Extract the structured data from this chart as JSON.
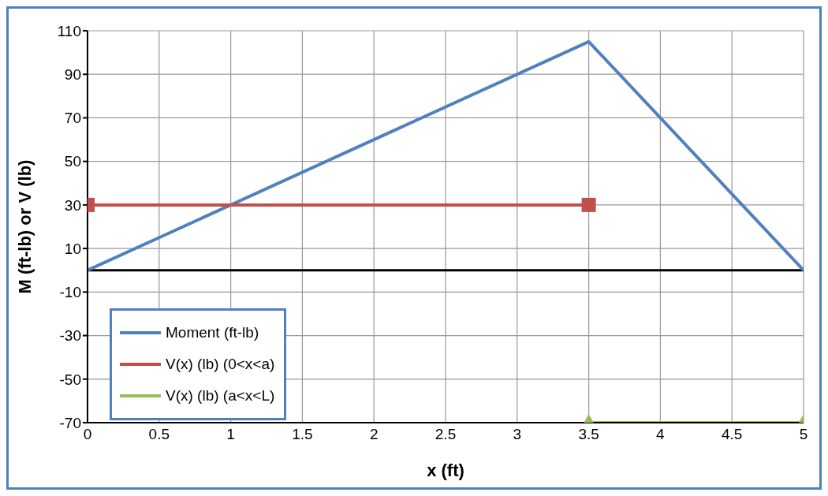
{
  "chart_data": {
    "type": "line",
    "xlabel": "x (ft)",
    "ylabel": "M (ft-lb) or V (lb)",
    "xlim": [
      0,
      5
    ],
    "xticks": [
      0,
      0.5,
      1,
      1.5,
      2,
      2.5,
      3,
      3.5,
      4,
      4.5,
      5
    ],
    "ylim": [
      -70,
      110
    ],
    "yticks": [
      -70,
      -50,
      -30,
      -10,
      10,
      30,
      50,
      70,
      90,
      110
    ],
    "grid": true,
    "legend": "bottom left",
    "line_style": "solid",
    "ref_lines": [
      {
        "axis": "y",
        "value": 0,
        "color": "#000000"
      }
    ],
    "series": [
      {
        "name": "Moment (ft-lb)",
        "color": "#4f81bd",
        "x": [
          0,
          3.5,
          5
        ],
        "values": [
          0,
          105,
          0
        ],
        "marker": "none"
      },
      {
        "name": "V(x) (lb) (0<x<a)",
        "color": "#c0504d",
        "x": [
          0,
          3.5
        ],
        "values": [
          30,
          30
        ],
        "marker": "square"
      },
      {
        "name": "V(x) (lb) (a<x<L)",
        "color": "#9bbb59",
        "x": [
          3.5,
          5
        ],
        "values": [
          -70,
          -70
        ],
        "marker": "triangle"
      }
    ]
  }
}
